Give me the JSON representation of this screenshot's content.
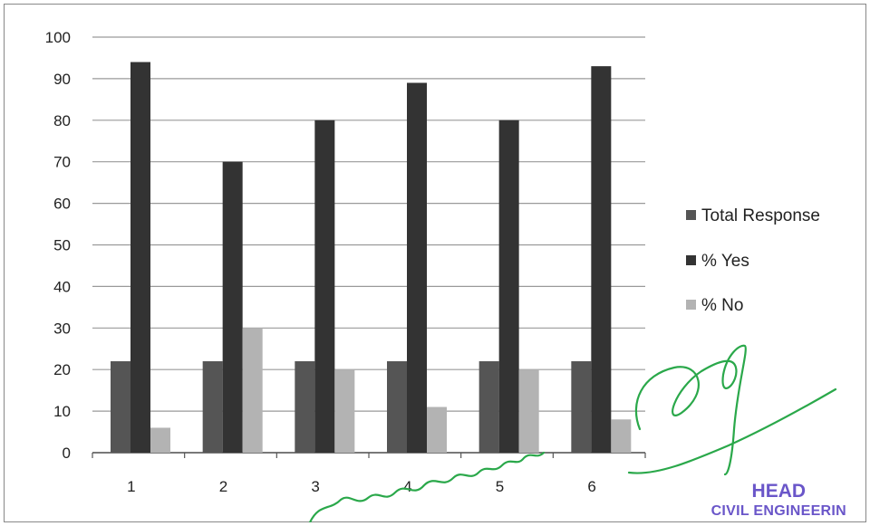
{
  "chart_data": {
    "type": "bar",
    "categories": [
      "1",
      "2",
      "3",
      "4",
      "5",
      "6"
    ],
    "series": [
      {
        "name": "Total Response",
        "values": [
          22,
          22,
          22,
          22,
          22,
          22
        ]
      },
      {
        "name": "% Yes",
        "values": [
          94,
          70,
          80,
          89,
          80,
          93
        ]
      },
      {
        "name": "% No",
        "values": [
          6,
          30,
          20,
          11,
          20,
          8
        ]
      }
    ],
    "title": "",
    "xlabel": "",
    "ylabel": "",
    "ylim": [
      0,
      100
    ],
    "yticks": [
      0,
      10,
      20,
      30,
      40,
      50,
      60,
      70,
      80,
      90,
      100
    ],
    "grid": true,
    "legend": "right",
    "colors": [
      "#555555",
      "#333333",
      "#b3b3b3"
    ]
  },
  "stamp": {
    "line1": "HEAD",
    "line2": "CIVIL ENGINEERIN",
    "color": "#6a56c9"
  }
}
